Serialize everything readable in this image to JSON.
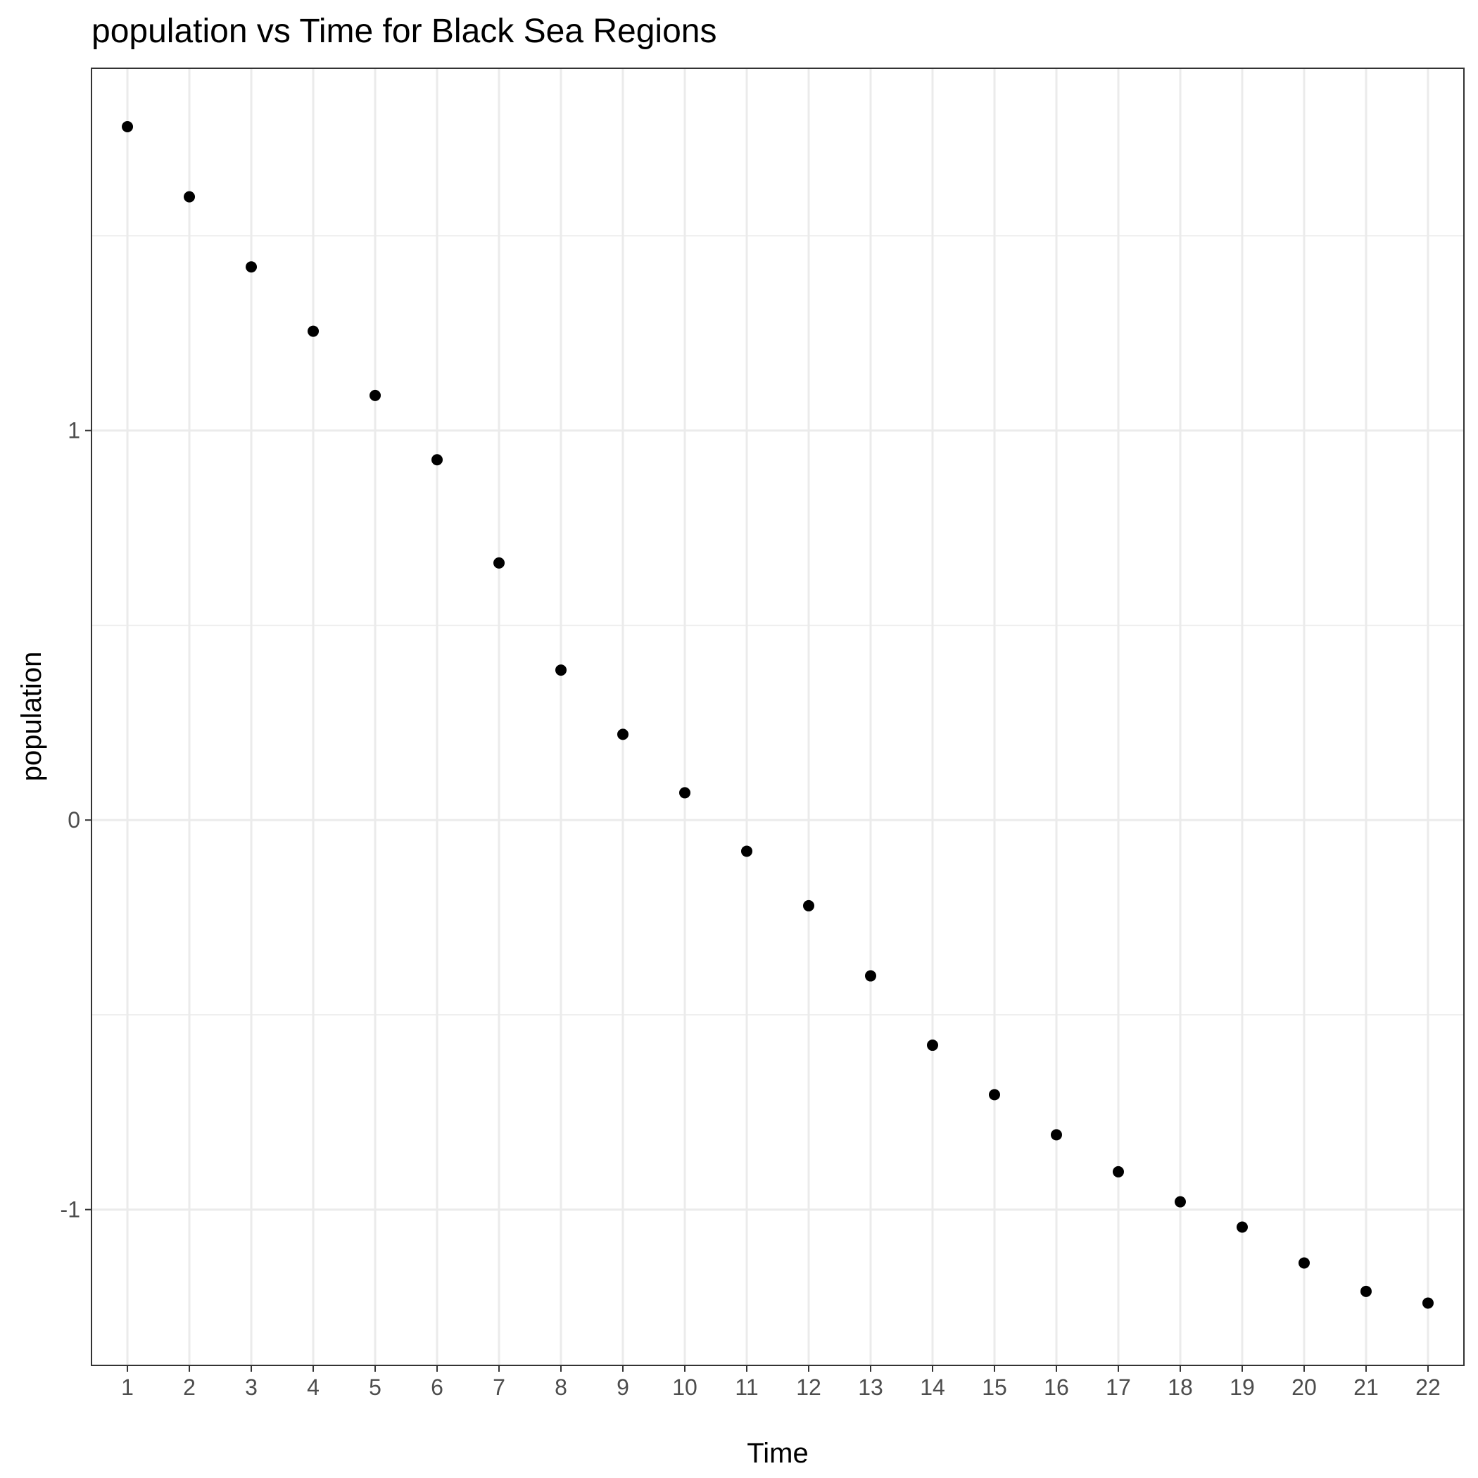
{
  "chart_data": {
    "type": "scatter",
    "title": "population  vs Time for Black Sea Regions",
    "xlabel": "Time",
    "ylabel": "population",
    "x": [
      1,
      2,
      3,
      4,
      5,
      6,
      7,
      8,
      9,
      10,
      11,
      12,
      13,
      14,
      15,
      16,
      17,
      18,
      19,
      20,
      21,
      22
    ],
    "series": [
      {
        "values": [
          1.78,
          1.6,
          1.42,
          1.255,
          1.09,
          0.925,
          0.66,
          0.385,
          0.22,
          0.07,
          -0.08,
          -0.22,
          -0.4,
          -0.578,
          -0.705,
          -0.808,
          -0.903,
          -0.98,
          -1.045,
          -1.137,
          -1.21,
          -1.24
        ]
      }
    ],
    "xlim": [
      0.42,
      22.58
    ],
    "ylim": [
      -1.4,
      1.93
    ],
    "x_ticks": [
      "1",
      "2",
      "3",
      "4",
      "5",
      "6",
      "7",
      "8",
      "9",
      "10",
      "11",
      "12",
      "13",
      "14",
      "15",
      "16",
      "17",
      "18",
      "19",
      "20",
      "21",
      "22"
    ],
    "y_ticks": [
      -1,
      0,
      1
    ],
    "y_tick_labels": [
      "-1",
      "0",
      "1"
    ],
    "y_minor_ticks": [
      -0.5,
      0.5,
      1.5
    ],
    "grid": true,
    "point_color": "#000000",
    "theme": "bw"
  }
}
